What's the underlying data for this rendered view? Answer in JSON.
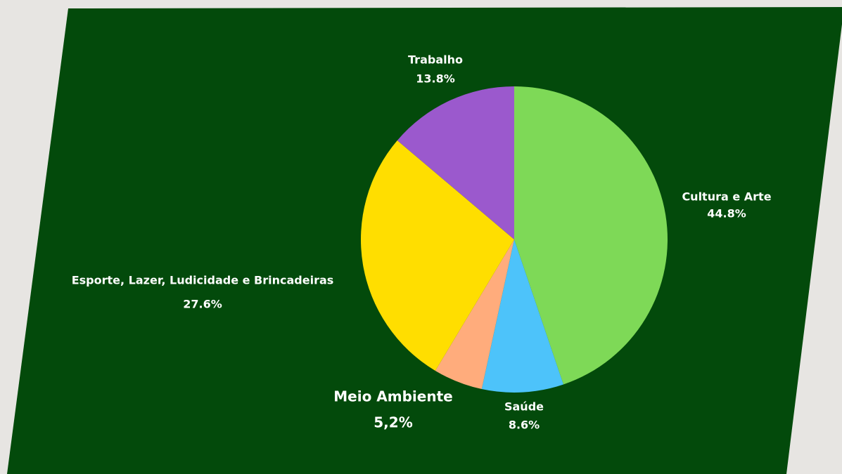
{
  "chart_data": {
    "type": "pie",
    "categories": [
      "Cultura e Arte",
      "Saúde",
      "Meio Ambiente",
      "Esporte, Lazer, Ludicidade e Brincadeiras",
      "Trabalho"
    ],
    "values": [
      44.8,
      8.6,
      5.2,
      27.6,
      13.8
    ],
    "value_labels": [
      "44.8%",
      "8.6%",
      "5,2%",
      "27.6%",
      "13.8%"
    ],
    "colors": [
      "#7ed957",
      "#4dc3fa",
      "#ffac7c",
      "#ffde00",
      "#9b59cd"
    ]
  }
}
